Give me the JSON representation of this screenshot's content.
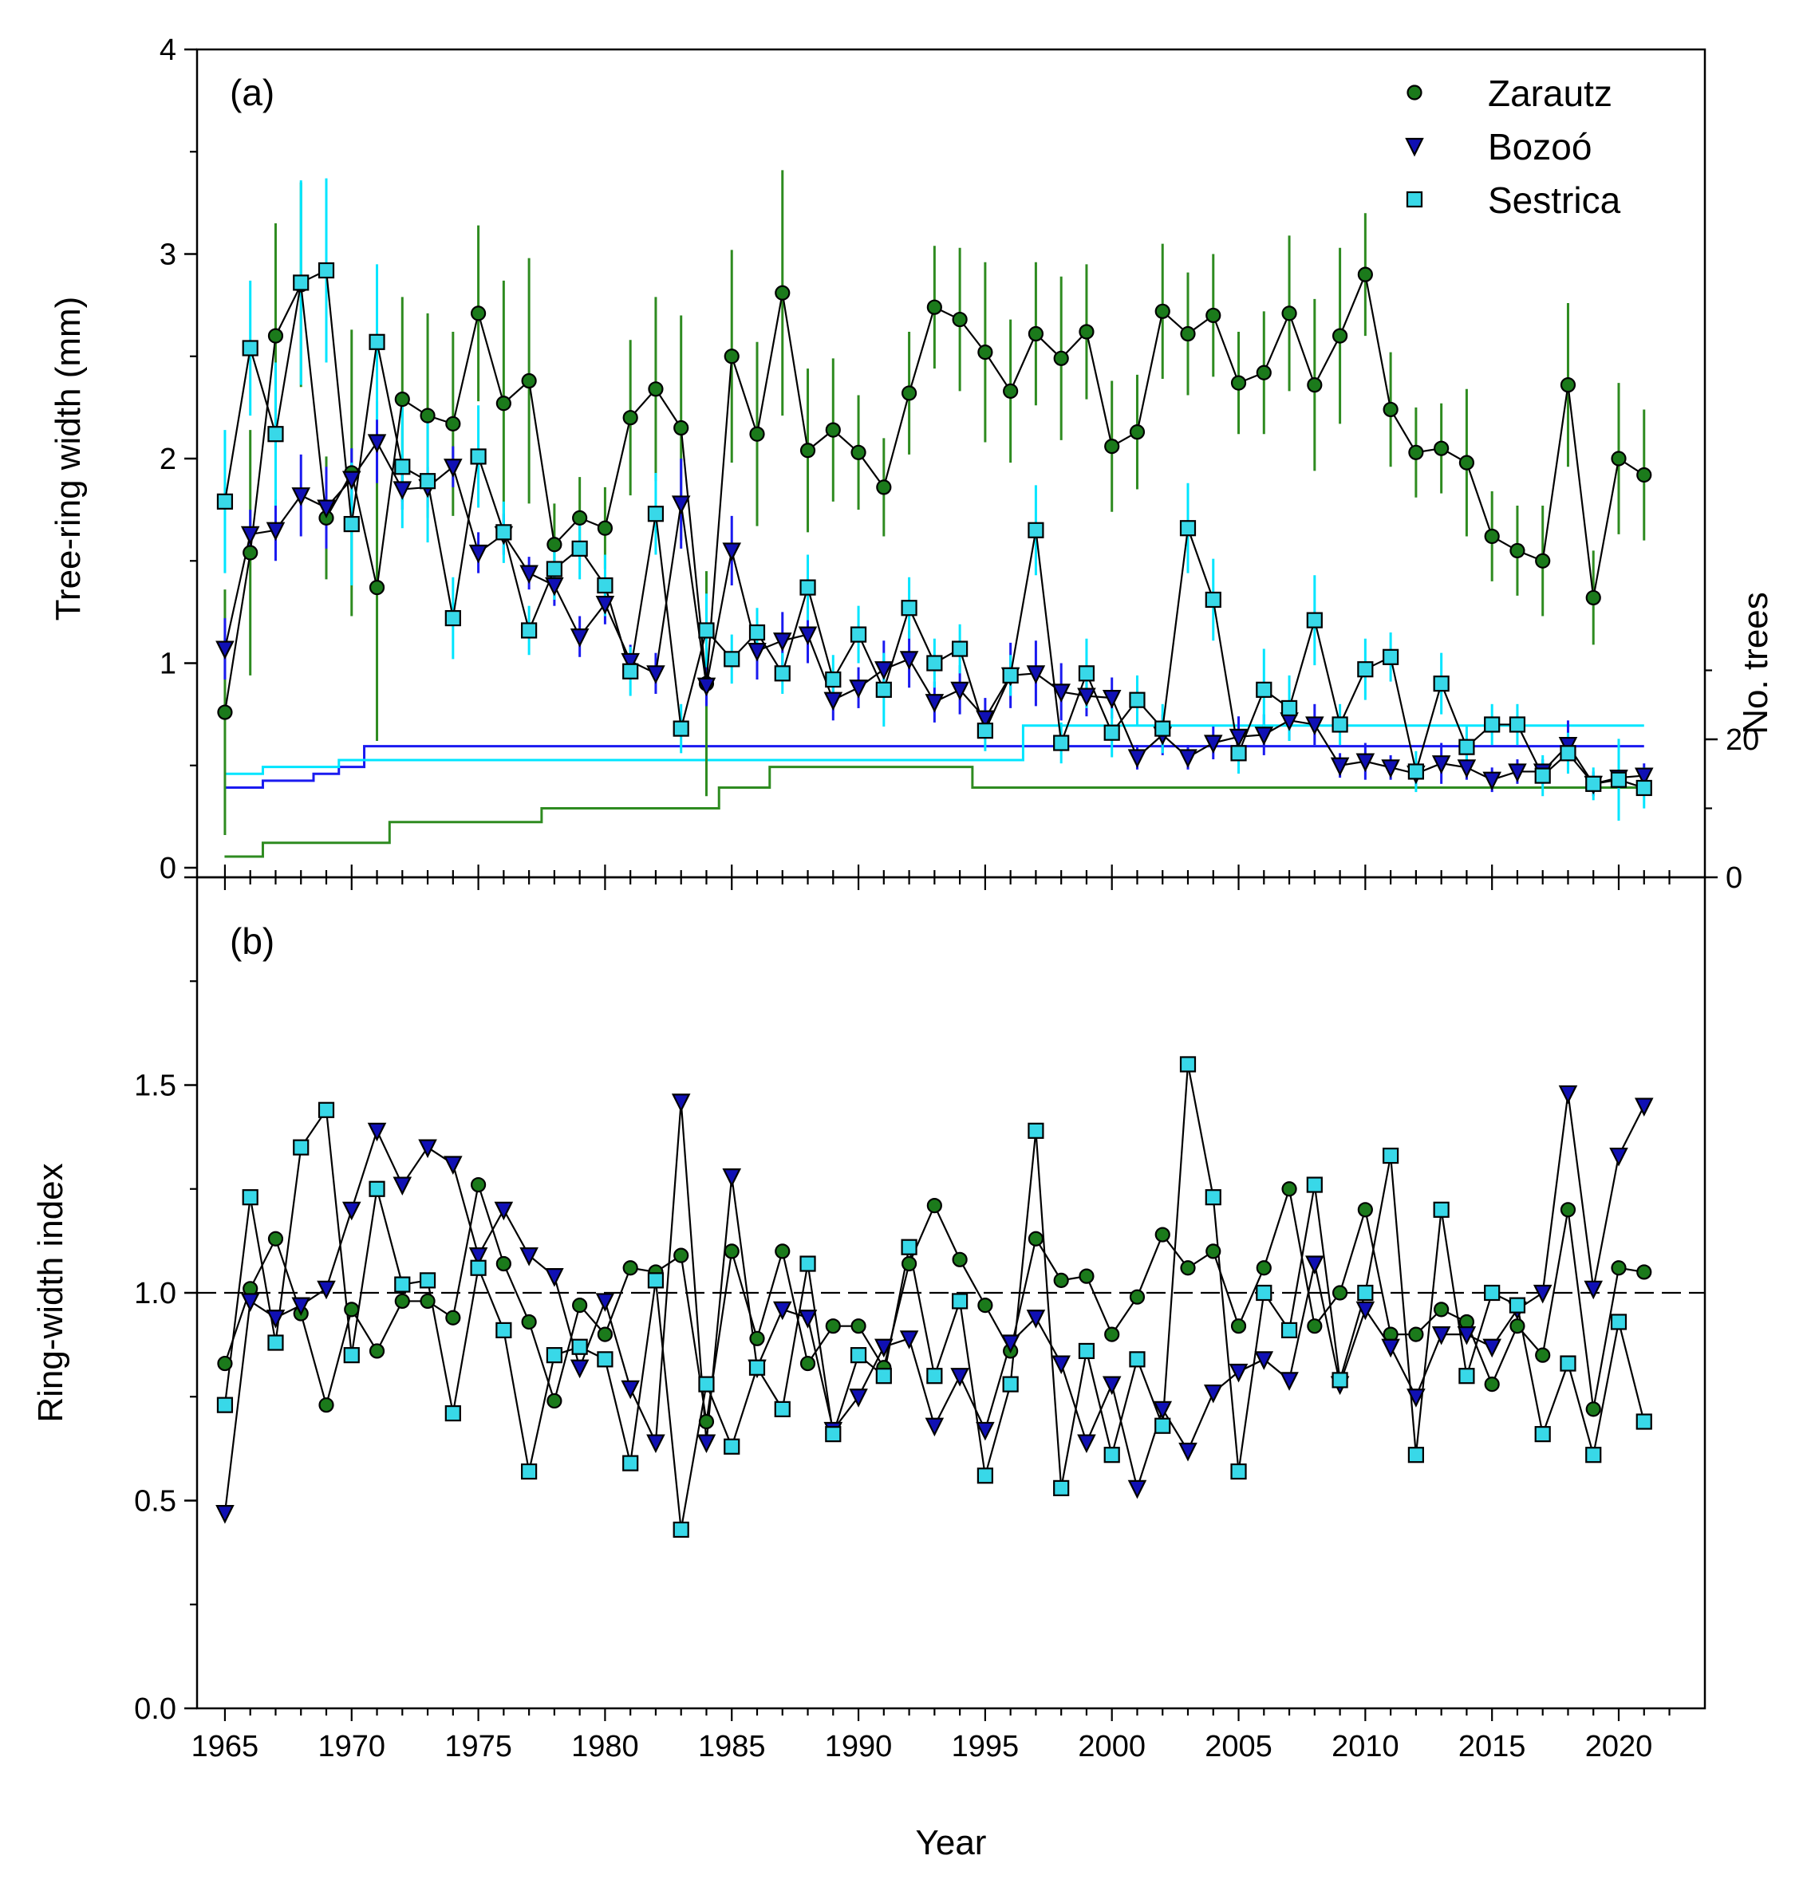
{
  "colors": {
    "zarautz": "#1b7a1b",
    "zarautz_bar": "#2e8b20",
    "bozoo": "#1010b4",
    "bozoo_bar": "#1a1af0",
    "sestrica": "#38d8e8",
    "sestrica_bar": "#00e5ff",
    "line": "#000000"
  },
  "chart_data": [
    {
      "panel": "a",
      "type": "line",
      "label": "(a)",
      "ylabel": "Tree-ring width (mm)",
      "y2label": "No. trees",
      "ylim": [
        0,
        4
      ],
      "yticks": [
        "0",
        "1",
        "2",
        "3",
        "4"
      ],
      "y2lim": [
        0,
        120
      ],
      "y2ticks": [
        "0",
        "20"
      ],
      "legend": [
        "Zarautz",
        "Bozoó",
        "Sestrica"
      ],
      "legend_position": "top-right",
      "x": [
        1965,
        1966,
        1967,
        1968,
        1969,
        1970,
        1971,
        1972,
        1973,
        1974,
        1975,
        1976,
        1977,
        1978,
        1979,
        1980,
        1981,
        1982,
        1983,
        1984,
        1985,
        1986,
        1987,
        1988,
        1989,
        1990,
        1991,
        1992,
        1993,
        1994,
        1995,
        1996,
        1997,
        1998,
        1999,
        2000,
        2001,
        2002,
        2003,
        2004,
        2005,
        2006,
        2007,
        2008,
        2009,
        2010,
        2011,
        2012,
        2013,
        2014,
        2015,
        2016,
        2017,
        2018,
        2019,
        2020,
        2021
      ],
      "series": [
        {
          "name": "Zarautz",
          "marker": "circle",
          "values": [
            0.76,
            1.54,
            2.6,
            2.85,
            1.71,
            1.93,
            1.37,
            2.29,
            2.21,
            2.17,
            2.71,
            2.27,
            2.38,
            1.58,
            1.71,
            1.66,
            2.2,
            2.34,
            2.15,
            0.9,
            2.5,
            2.12,
            2.81,
            2.04,
            2.14,
            2.03,
            1.86,
            2.32,
            2.74,
            2.68,
            2.52,
            2.33,
            2.61,
            2.49,
            2.62,
            2.06,
            2.13,
            2.72,
            2.61,
            2.7,
            2.37,
            2.42,
            2.71,
            2.36,
            2.6,
            2.9,
            2.24,
            2.03,
            2.05,
            1.98,
            1.62,
            1.55,
            1.5,
            2.36,
            1.32,
            2.0,
            1.92
          ],
          "errors": [
            0.6,
            0.6,
            0.55,
            0.5,
            0.3,
            0.7,
            0.75,
            0.5,
            0.5,
            0.45,
            0.43,
            0.6,
            0.6,
            0.2,
            0.2,
            0.2,
            0.38,
            0.45,
            0.55,
            0.55,
            0.52,
            0.45,
            0.6,
            0.4,
            0.35,
            0.28,
            0.24,
            0.3,
            0.3,
            0.35,
            0.44,
            0.35,
            0.35,
            0.4,
            0.33,
            0.32,
            0.28,
            0.33,
            0.3,
            0.3,
            0.25,
            0.3,
            0.38,
            0.42,
            0.43,
            0.3,
            0.28,
            0.22,
            0.22,
            0.36,
            0.22,
            0.22,
            0.27,
            0.4,
            0.23,
            0.37,
            0.32
          ],
          "n_trees": [
            3,
            3,
            5,
            5,
            5,
            5,
            5,
            8,
            8,
            8,
            8,
            8,
            8,
            10,
            10,
            10,
            10,
            10,
            10,
            10,
            13,
            13,
            16,
            16,
            16,
            16,
            16,
            16,
            16,
            16,
            13,
            13,
            13,
            13,
            13,
            13,
            13,
            13,
            13,
            13,
            13,
            13,
            13,
            13,
            13,
            13,
            13,
            13,
            13,
            13,
            13,
            13,
            13,
            13,
            13,
            13,
            13
          ]
        },
        {
          "name": "Bozoó",
          "marker": "triangle-down",
          "values": [
            1.07,
            1.63,
            1.65,
            1.82,
            1.76,
            1.9,
            2.08,
            1.85,
            1.86,
            1.96,
            1.54,
            1.63,
            1.44,
            1.38,
            1.13,
            1.29,
            1.01,
            0.95,
            1.78,
            0.89,
            1.55,
            1.06,
            1.11,
            1.14,
            0.82,
            0.88,
            0.97,
            1.02,
            0.81,
            0.87,
            0.73,
            0.94,
            0.95,
            0.86,
            0.84,
            0.83,
            0.54,
            0.65,
            0.54,
            0.61,
            0.64,
            0.65,
            0.72,
            0.7,
            0.5,
            0.52,
            0.49,
            0.46,
            0.51,
            0.49,
            0.43,
            0.47,
            0.47,
            0.6,
            0.41,
            0.44,
            0.45
          ],
          "errors": [
            0.15,
            0.12,
            0.15,
            0.2,
            0.2,
            0.15,
            0.2,
            0.1,
            0.1,
            0.1,
            0.1,
            0.1,
            0.08,
            0.1,
            0.1,
            0.1,
            0.08,
            0.1,
            0.22,
            0.1,
            0.17,
            0.14,
            0.14,
            0.14,
            0.1,
            0.1,
            0.14,
            0.14,
            0.1,
            0.12,
            0.1,
            0.16,
            0.16,
            0.14,
            0.1,
            0.1,
            0.06,
            0.1,
            0.06,
            0.08,
            0.1,
            0.1,
            0.1,
            0.1,
            0.06,
            0.09,
            0.06,
            0.06,
            0.1,
            0.06,
            0.06,
            0.06,
            0.06,
            0.12,
            0.06,
            0.06,
            0.06
          ],
          "n_trees": [
            13,
            13,
            14,
            14,
            15,
            16,
            19,
            19,
            19,
            19,
            19,
            19,
            19,
            19,
            19,
            19,
            19,
            19,
            19,
            19,
            19,
            19,
            19,
            19,
            19,
            19,
            19,
            19,
            19,
            19,
            19,
            19,
            19,
            19,
            19,
            19,
            19,
            19,
            19,
            19,
            19,
            19,
            19,
            19,
            19,
            19,
            19,
            19,
            19,
            19,
            19,
            19,
            19,
            19,
            19,
            19,
            19
          ]
        },
        {
          "name": "Sestrica",
          "marker": "square",
          "values": [
            1.79,
            2.54,
            2.12,
            2.86,
            2.92,
            1.68,
            2.57,
            1.96,
            1.89,
            1.22,
            2.01,
            1.64,
            1.16,
            1.46,
            1.56,
            1.38,
            0.96,
            1.73,
            0.68,
            1.16,
            1.02,
            1.15,
            0.95,
            1.37,
            0.92,
            1.14,
            0.87,
            1.27,
            1.0,
            1.07,
            0.67,
            0.94,
            1.65,
            0.61,
            0.95,
            0.66,
            0.82,
            0.68,
            1.66,
            1.31,
            0.56,
            0.87,
            0.78,
            1.21,
            0.7,
            0.97,
            1.03,
            0.47,
            0.9,
            0.59,
            0.7,
            0.7,
            0.45,
            0.56,
            0.41,
            0.43,
            0.39
          ],
          "errors": [
            0.35,
            0.33,
            0.35,
            0.5,
            0.45,
            0.3,
            0.38,
            0.3,
            0.3,
            0.2,
            0.25,
            0.15,
            0.12,
            0.15,
            0.15,
            0.15,
            0.12,
            0.2,
            0.12,
            0.18,
            0.12,
            0.12,
            0.1,
            0.16,
            0.12,
            0.14,
            0.18,
            0.15,
            0.12,
            0.12,
            0.1,
            0.1,
            0.22,
            0.1,
            0.17,
            0.12,
            0.12,
            0.12,
            0.22,
            0.2,
            0.1,
            0.2,
            0.16,
            0.22,
            0.1,
            0.15,
            0.12,
            0.1,
            0.15,
            0.1,
            0.1,
            0.1,
            0.1,
            0.1,
            0.08,
            0.2,
            0.1
          ],
          "n_trees": [
            15,
            15,
            16,
            16,
            16,
            17,
            17,
            17,
            17,
            17,
            17,
            17,
            17,
            17,
            17,
            17,
            17,
            17,
            17,
            17,
            17,
            17,
            17,
            17,
            17,
            17,
            17,
            17,
            17,
            17,
            17,
            17,
            22,
            22,
            22,
            22,
            22,
            22,
            22,
            22,
            22,
            22,
            22,
            22,
            22,
            22,
            22,
            22,
            22,
            22,
            22,
            22,
            22,
            22,
            22,
            22,
            22
          ]
        }
      ]
    },
    {
      "panel": "b",
      "type": "line",
      "label": "(b)",
      "xlabel": "Year",
      "ylabel": "Ring-width index",
      "ylim": [
        0,
        2
      ],
      "yticks": [
        "0.0",
        "0.5",
        "1.0",
        "1.5"
      ],
      "xticks": [
        "1965",
        "1970",
        "1975",
        "1980",
        "1985",
        "1990",
        "1995",
        "2000",
        "2005",
        "2010",
        "2015",
        "2020"
      ],
      "reference_line": 1.0,
      "x": [
        1965,
        1966,
        1967,
        1968,
        1969,
        1970,
        1971,
        1972,
        1973,
        1974,
        1975,
        1976,
        1977,
        1978,
        1979,
        1980,
        1981,
        1982,
        1983,
        1984,
        1985,
        1986,
        1987,
        1988,
        1989,
        1990,
        1991,
        1992,
        1993,
        1994,
        1995,
        1996,
        1997,
        1998,
        1999,
        2000,
        2001,
        2002,
        2003,
        2004,
        2005,
        2006,
        2007,
        2008,
        2009,
        2010,
        2011,
        2012,
        2013,
        2014,
        2015,
        2016,
        2017,
        2018,
        2019,
        2020,
        2021
      ],
      "series": [
        {
          "name": "Zarautz",
          "marker": "circle",
          "values": [
            0.83,
            1.01,
            1.13,
            0.95,
            0.73,
            0.96,
            0.86,
            0.98,
            0.98,
            0.94,
            1.26,
            1.07,
            0.93,
            0.74,
            0.97,
            0.9,
            1.06,
            1.05,
            1.09,
            0.69,
            1.1,
            0.89,
            1.1,
            0.83,
            0.92,
            0.92,
            0.82,
            1.07,
            1.21,
            1.08,
            0.97,
            0.86,
            1.13,
            1.03,
            1.04,
            0.9,
            0.99,
            1.14,
            1.06,
            1.1,
            0.92,
            1.06,
            1.25,
            0.92,
            1.0,
            1.2,
            0.9,
            0.9,
            0.96,
            0.93,
            0.78,
            0.92,
            0.85,
            1.2,
            0.72,
            1.06,
            1.05
          ]
        },
        {
          "name": "Bozoó",
          "marker": "triangle-down",
          "values": [
            0.47,
            0.98,
            0.94,
            0.97,
            1.01,
            1.2,
            1.39,
            1.26,
            1.35,
            1.31,
            1.09,
            1.2,
            1.09,
            1.04,
            0.82,
            0.98,
            0.77,
            0.64,
            1.46,
            0.64,
            1.28,
            0.82,
            0.96,
            0.94,
            0.67,
            0.75,
            0.87,
            0.89,
            0.68,
            0.8,
            0.67,
            0.88,
            0.94,
            0.83,
            0.64,
            0.78,
            0.53,
            0.72,
            0.62,
            0.76,
            0.81,
            0.84,
            0.79,
            1.07,
            0.78,
            0.96,
            0.87,
            0.75,
            0.9,
            0.9,
            0.87,
            0.96,
            1.0,
            1.48,
            1.01,
            1.33,
            1.45
          ]
        },
        {
          "name": "Sestrica",
          "marker": "square",
          "values": [
            0.73,
            1.23,
            0.88,
            1.35,
            1.44,
            0.85,
            1.25,
            1.02,
            1.03,
            0.71,
            1.06,
            0.91,
            0.57,
            0.85,
            0.87,
            0.84,
            0.59,
            1.03,
            0.43,
            0.78,
            0.63,
            0.82,
            0.72,
            1.07,
            0.66,
            0.85,
            0.8,
            1.11,
            0.8,
            0.98,
            0.56,
            0.78,
            1.39,
            0.53,
            0.86,
            0.61,
            0.84,
            0.68,
            1.55,
            1.23,
            0.57,
            1.0,
            0.91,
            1.26,
            0.79,
            1.0,
            1.33,
            0.61,
            1.2,
            0.8,
            1.0,
            0.97,
            0.66,
            0.83,
            0.61,
            0.93,
            0.69
          ]
        }
      ]
    }
  ]
}
